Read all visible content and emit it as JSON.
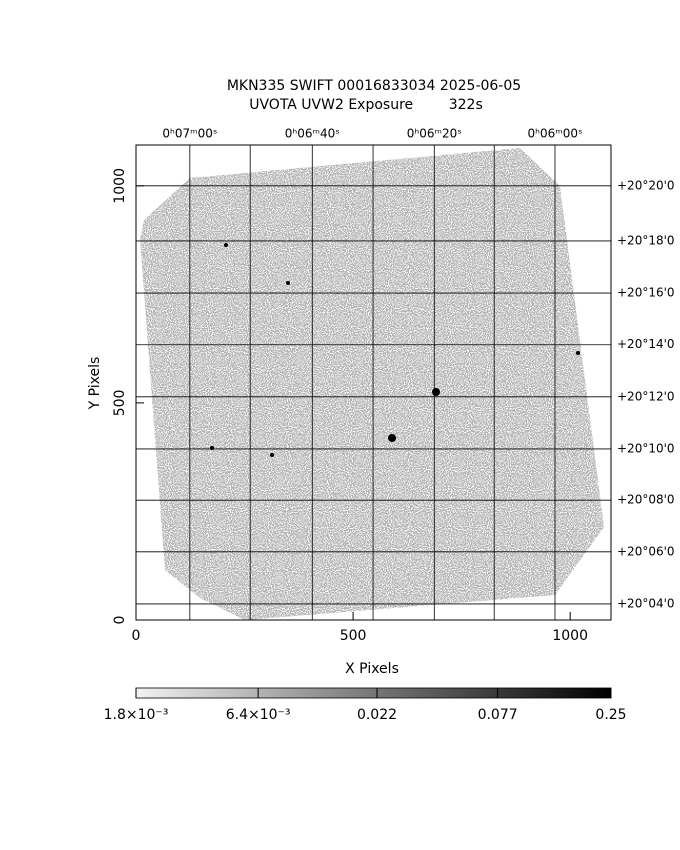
{
  "chart_data": {
    "type": "image",
    "title": "MKN335 SWIFT 00016833034 2025-06-05",
    "subtitle": "UVOTA UVW2 Exposure        322s",
    "x_label": "X Pixels",
    "y_label": "Y Pixels",
    "xlim": [
      0,
      1094
    ],
    "ylim": [
      0,
      1094
    ],
    "xticks": [
      0,
      500,
      1000
    ],
    "yticks": [
      0,
      500,
      1000
    ],
    "x2ticks": [
      {
        "value": 124,
        "label": "0ʰ07ᵐ00ˢ"
      },
      {
        "value": 406,
        "label": "0ʰ06ᵐ40ˢ"
      },
      {
        "value": 687,
        "label": "0ʰ06ᵐ20ˢ"
      },
      {
        "value": 965,
        "label": "0ʰ06ᵐ00ˢ"
      }
    ],
    "x2grid": [
      263,
      546,
      825
    ],
    "y2ticks": [
      {
        "value": 1000,
        "label": "+20°20'0"
      },
      {
        "value": 873,
        "label": "+20°18'0"
      },
      {
        "value": 753,
        "label": "+20°16'0"
      },
      {
        "value": 634,
        "label": "+20°14'0"
      },
      {
        "value": 514,
        "label": "+20°12'0"
      },
      {
        "value": 394,
        "label": "+20°10'0"
      },
      {
        "value": 276,
        "label": "+20°08'0"
      },
      {
        "value": 157,
        "label": "+20°06'0"
      },
      {
        "value": 37,
        "label": "+20°04'0"
      }
    ],
    "grid": true,
    "colorbar": {
      "scale": "log",
      "lim": [
        0.0018,
        0.25
      ],
      "ticks": [
        {
          "value": 0.0018,
          "label": "1.8×10⁻³"
        },
        {
          "value": 0.0064,
          "label": "6.4×10⁻³"
        },
        0.022,
        0.077,
        0.25
      ]
    }
  }
}
